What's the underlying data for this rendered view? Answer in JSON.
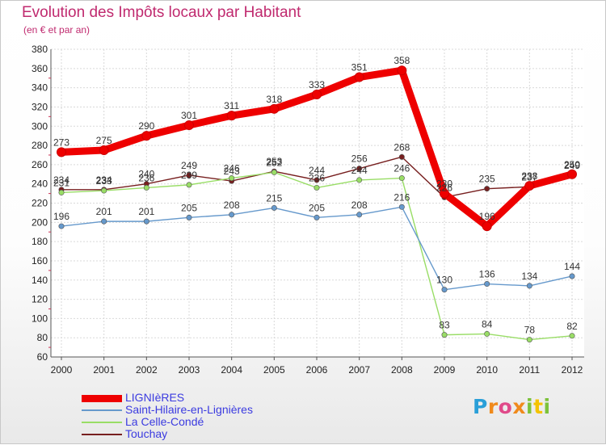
{
  "title": "Evolution des Impôts locaux par Habitant",
  "subtitle": "(en € et par an)",
  "logo_text": "Proxiti",
  "chart_data": {
    "type": "line",
    "x": [
      "2000",
      "2001",
      "2002",
      "2003",
      "2004",
      "2005",
      "2006",
      "2007",
      "2008",
      "2009",
      "2010",
      "2011",
      "2012"
    ],
    "ylim": [
      60,
      380
    ],
    "yticks": [
      60,
      80,
      100,
      120,
      140,
      160,
      180,
      200,
      220,
      240,
      260,
      280,
      300,
      320,
      340,
      360,
      380
    ],
    "grid": true,
    "legend_position": "bottom-left",
    "series": [
      {
        "name": "LIGNIèRES",
        "color": "#ee0000",
        "values": [
          273,
          275,
          290,
          301,
          311,
          318,
          333,
          351,
          358,
          230,
          196,
          238,
          250
        ]
      },
      {
        "name": "Saint-Hilaire-en-Lignières",
        "color": "#6699cc",
        "values": [
          196,
          201,
          201,
          205,
          208,
          215,
          205,
          208,
          216,
          130,
          136,
          134,
          144
        ]
      },
      {
        "name": "La Celle-Condé",
        "color": "#99dd66",
        "values": [
          231,
          233,
          236,
          239,
          246,
          252,
          236,
          244,
          246,
          83,
          84,
          78,
          82
        ]
      },
      {
        "name": "Touchay",
        "color": "#771f1f",
        "values": [
          234,
          234,
          240,
          249,
          243,
          253,
          244,
          256,
          268,
          226,
          235,
          237,
          249
        ]
      }
    ]
  }
}
